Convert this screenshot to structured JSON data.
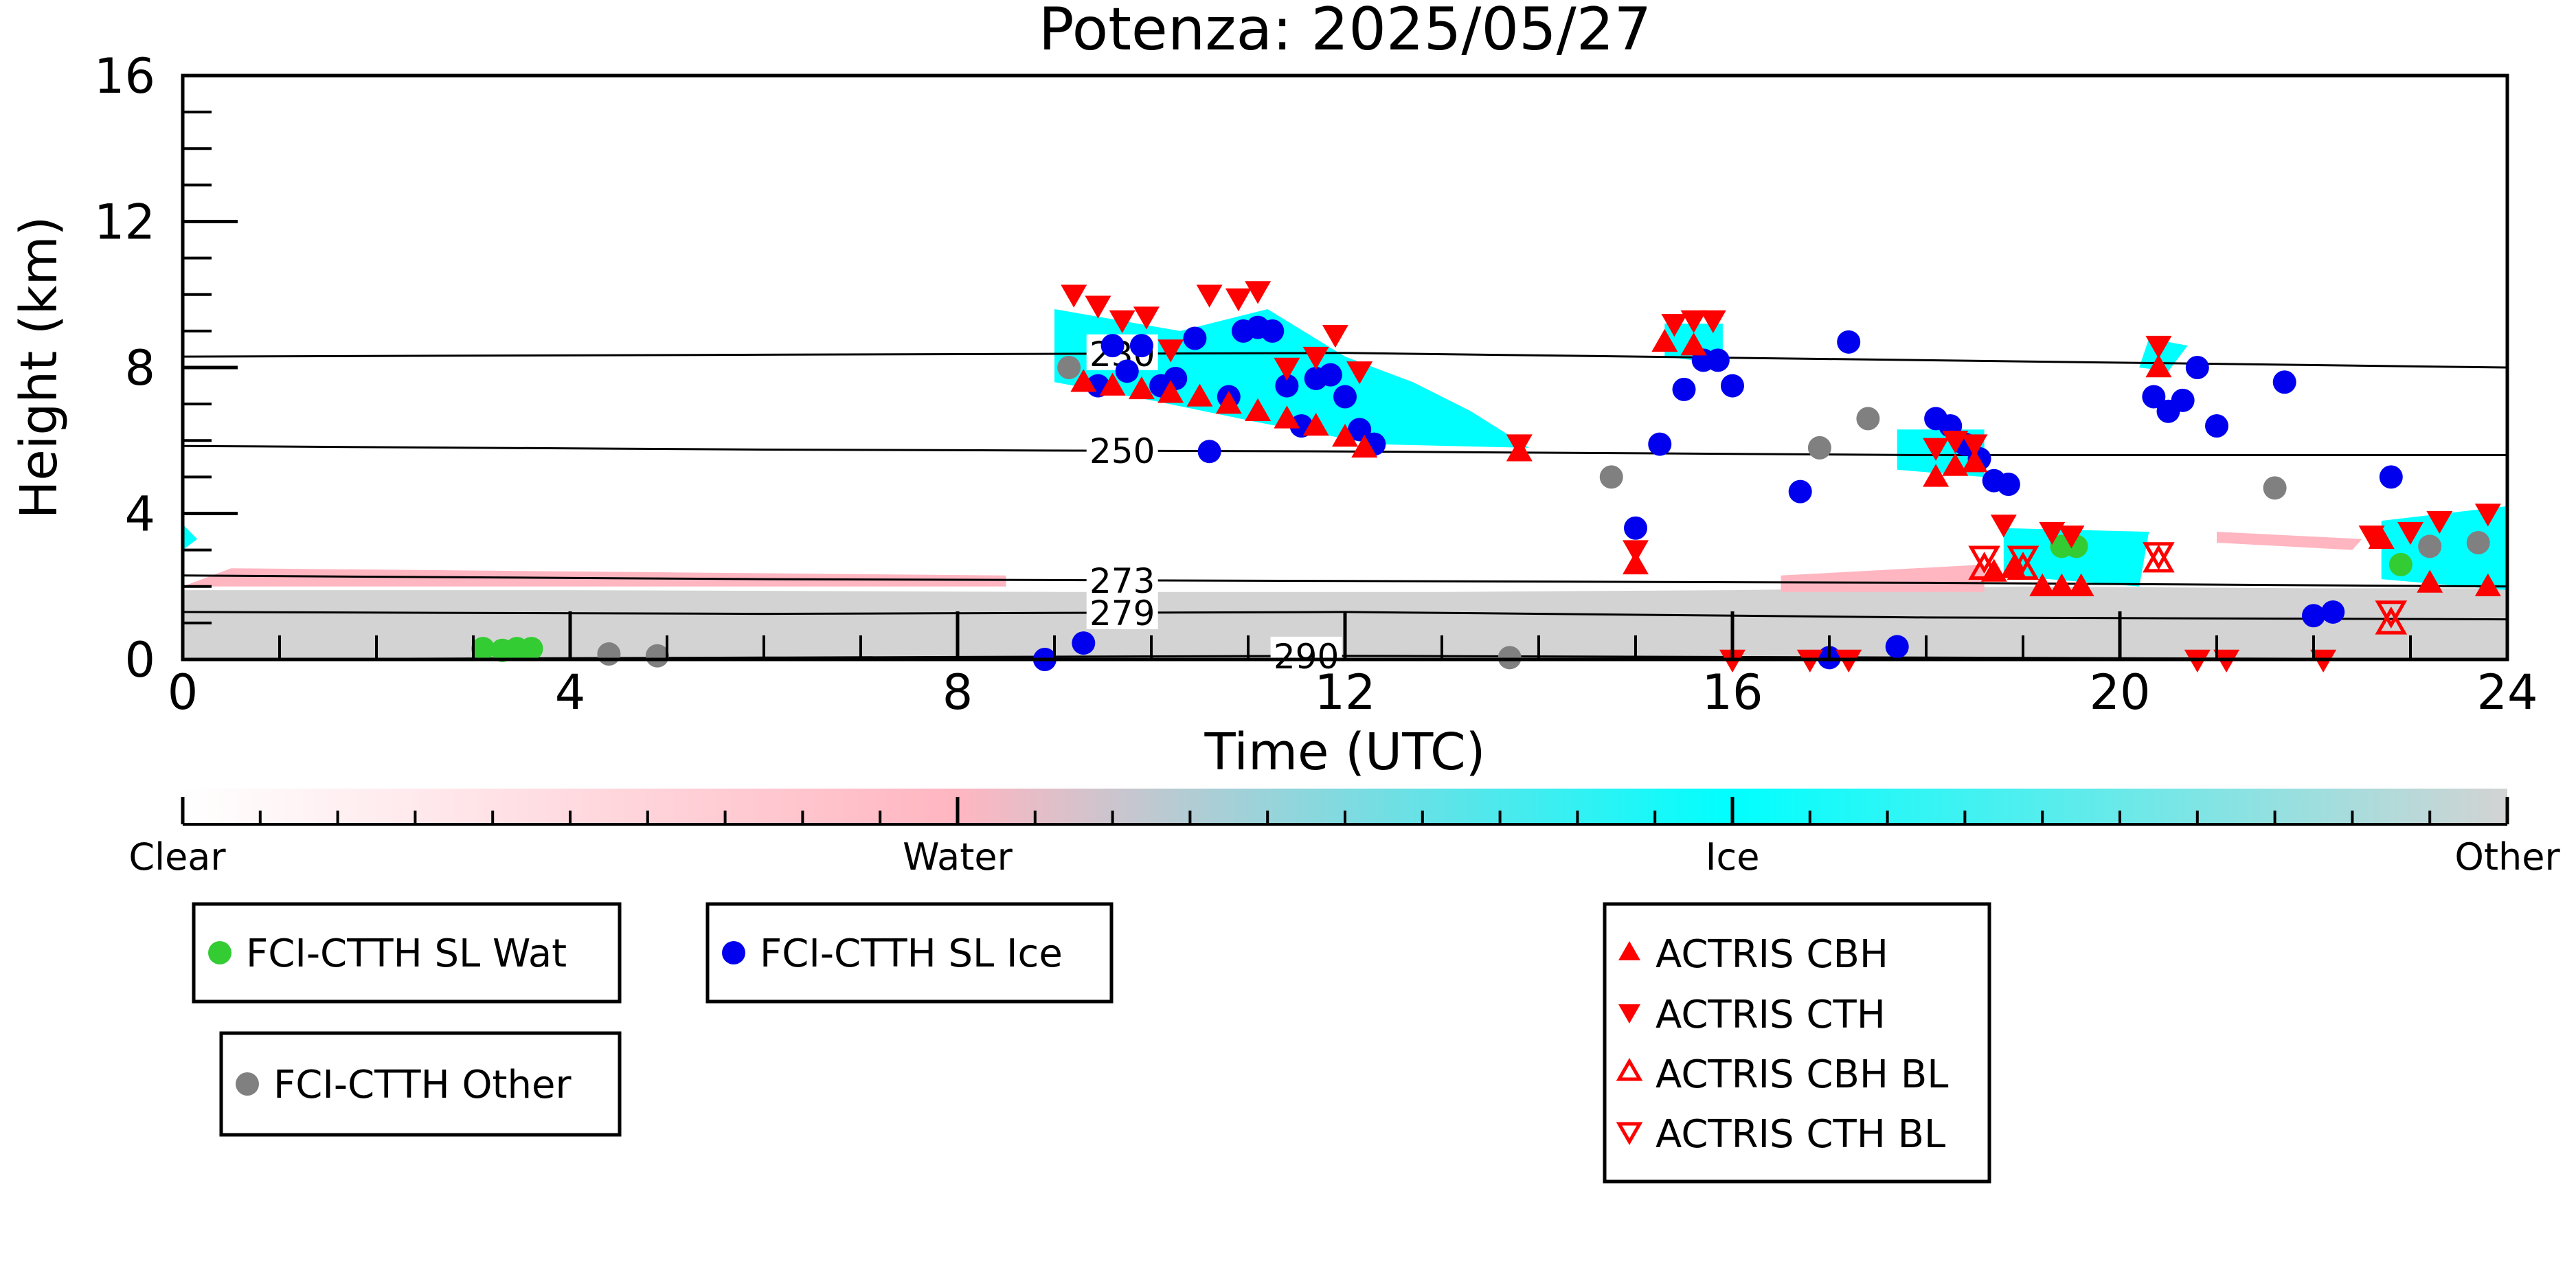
{
  "chart_data": {
    "type": "scatter",
    "title": "Potenza: 2025/05/27",
    "xlabel": "Time (UTC)",
    "ylabel": "Height (km)",
    "xlim": [
      0,
      24
    ],
    "ylim": [
      0,
      16
    ],
    "xticks": [
      "0",
      "4",
      "8",
      "12",
      "16",
      "20",
      "24"
    ],
    "yticks": [
      "0",
      "4",
      "8",
      "12",
      "16"
    ],
    "isotherms": [
      {
        "label": "230",
        "label_x": 9.7,
        "points": [
          [
            0,
            8.3
          ],
          [
            6,
            8.35
          ],
          [
            12,
            8.4
          ],
          [
            18,
            8.2
          ],
          [
            24,
            8.0
          ]
        ]
      },
      {
        "label": "250",
        "label_x": 9.7,
        "points": [
          [
            0,
            5.85
          ],
          [
            6,
            5.75
          ],
          [
            12,
            5.7
          ],
          [
            18,
            5.6
          ],
          [
            24,
            5.6
          ]
        ]
      },
      {
        "label": "273",
        "label_x": 9.7,
        "points": [
          [
            0,
            2.3
          ],
          [
            6,
            2.2
          ],
          [
            12,
            2.15
          ],
          [
            18,
            2.1
          ],
          [
            24,
            2.0
          ]
        ]
      },
      {
        "label": "279",
        "label_x": 9.7,
        "points": [
          [
            0,
            1.3
          ],
          [
            6,
            1.25
          ],
          [
            12,
            1.3
          ],
          [
            18,
            1.15
          ],
          [
            24,
            1.1
          ]
        ]
      },
      {
        "label": "290",
        "label_x": 11.6,
        "points": [
          [
            0,
            0.0
          ],
          [
            6,
            0.05
          ],
          [
            12,
            0.1
          ],
          [
            18,
            0.05
          ],
          [
            24,
            0.0
          ]
        ]
      }
    ],
    "colorbar": {
      "labels": [
        "Clear",
        "Water",
        "Ice",
        "Other"
      ],
      "colors": [
        "#ffffff",
        "#ffb6c1",
        "#00ffff",
        "#d3d3d3"
      ]
    },
    "cloud_regions": [
      {
        "class": "Other",
        "polygon": [
          [
            0,
            0
          ],
          [
            0,
            1.9
          ],
          [
            4,
            1.9
          ],
          [
            9,
            1.85
          ],
          [
            13,
            1.85
          ],
          [
            16,
            1.9
          ],
          [
            19,
            2.0
          ],
          [
            22,
            1.95
          ],
          [
            24,
            1.95
          ],
          [
            24,
            0
          ]
        ]
      },
      {
        "class": "Ice",
        "polygon": [
          [
            9.0,
            9.6
          ],
          [
            10.3,
            9.0
          ],
          [
            11.2,
            9.6
          ],
          [
            12.0,
            8.3
          ],
          [
            12.7,
            7.6
          ],
          [
            13.3,
            6.8
          ],
          [
            13.9,
            5.8
          ],
          [
            12.3,
            5.9
          ],
          [
            11.1,
            6.5
          ],
          [
            10.0,
            7.1
          ],
          [
            9.0,
            7.6
          ]
        ]
      },
      {
        "class": "Ice",
        "polygon": [
          [
            15.3,
            9.2
          ],
          [
            15.9,
            9.2
          ],
          [
            15.9,
            8.1
          ],
          [
            15.3,
            8.3
          ]
        ]
      },
      {
        "class": "Ice",
        "polygon": [
          [
            17.7,
            6.3
          ],
          [
            18.6,
            6.3
          ],
          [
            18.6,
            5.0
          ],
          [
            17.7,
            5.2
          ]
        ]
      },
      {
        "class": "Ice",
        "polygon": [
          [
            18.8,
            3.6
          ],
          [
            20.3,
            3.5
          ],
          [
            20.2,
            2.0
          ],
          [
            18.8,
            2.3
          ]
        ]
      },
      {
        "class": "Ice",
        "polygon": [
          [
            22.7,
            3.8
          ],
          [
            24,
            4.2
          ],
          [
            24,
            1.9
          ],
          [
            22.7,
            2.2
          ]
        ]
      },
      {
        "class": "Ice",
        "polygon": [
          [
            20.3,
            8.8
          ],
          [
            20.7,
            8.6
          ],
          [
            20.5,
            7.9
          ],
          [
            20.2,
            8.0
          ]
        ]
      },
      {
        "class": "Ice",
        "polygon": [
          [
            0.0,
            3.7
          ],
          [
            0.15,
            3.3
          ],
          [
            0.0,
            3.0
          ]
        ]
      },
      {
        "class": "Water",
        "polygon": [
          [
            0,
            2.0
          ],
          [
            0.5,
            2.5
          ],
          [
            8.5,
            2.3
          ],
          [
            8.5,
            2.0
          ]
        ]
      },
      {
        "class": "Water",
        "polygon": [
          [
            16.5,
            2.3
          ],
          [
            18.6,
            2.6
          ],
          [
            18.6,
            1.85
          ],
          [
            16.5,
            1.85
          ]
        ]
      },
      {
        "class": "Water",
        "polygon": [
          [
            21.0,
            3.5
          ],
          [
            22.5,
            3.3
          ],
          [
            22.4,
            3.0
          ],
          [
            21.0,
            3.2
          ]
        ]
      }
    ],
    "series": [
      {
        "name": "FCI-CTTH SL Wat",
        "marker": "circle",
        "color": "#33cc33",
        "points": [
          [
            3.1,
            0.3
          ],
          [
            3.3,
            0.25
          ],
          [
            3.45,
            0.3
          ],
          [
            3.6,
            0.3
          ],
          [
            19.4,
            3.1
          ],
          [
            19.55,
            3.1
          ],
          [
            22.9,
            2.6
          ]
        ]
      },
      {
        "name": "FCI-CTTH SL Ice",
        "marker": "circle",
        "color": "#0000ee",
        "points": [
          [
            9.3,
            0.45
          ],
          [
            9.45,
            7.5
          ],
          [
            9.6,
            8.6
          ],
          [
            9.75,
            7.9
          ],
          [
            9.9,
            8.6
          ],
          [
            10.1,
            7.5
          ],
          [
            10.25,
            7.7
          ],
          [
            10.45,
            8.8
          ],
          [
            10.6,
            5.7
          ],
          [
            10.8,
            7.2
          ],
          [
            10.95,
            9.0
          ],
          [
            11.1,
            9.1
          ],
          [
            11.25,
            9.0
          ],
          [
            11.4,
            7.5
          ],
          [
            11.55,
            6.4
          ],
          [
            11.7,
            7.7
          ],
          [
            11.85,
            7.8
          ],
          [
            12.0,
            7.2
          ],
          [
            12.15,
            6.3
          ],
          [
            12.3,
            5.9
          ],
          [
            15.0,
            3.6
          ],
          [
            15.25,
            5.9
          ],
          [
            15.5,
            7.4
          ],
          [
            15.7,
            8.2
          ],
          [
            15.85,
            8.2
          ],
          [
            16.0,
            7.5
          ],
          [
            16.7,
            4.6
          ],
          [
            17.0,
            0.05
          ],
          [
            17.2,
            8.7
          ],
          [
            17.7,
            0.35
          ],
          [
            18.1,
            6.6
          ],
          [
            18.25,
            6.4
          ],
          [
            18.4,
            5.9
          ],
          [
            18.55,
            5.5
          ],
          [
            18.7,
            4.9
          ],
          [
            18.85,
            4.8
          ],
          [
            20.35,
            7.2
          ],
          [
            20.5,
            6.8
          ],
          [
            20.65,
            7.1
          ],
          [
            20.8,
            8.0
          ],
          [
            21.0,
            6.4
          ],
          [
            21.7,
            7.6
          ],
          [
            22.0,
            1.2
          ],
          [
            22.2,
            1.3
          ],
          [
            22.8,
            5.0
          ],
          [
            8.9,
            0.0
          ]
        ]
      },
      {
        "name": "FCI-CTTH Other",
        "marker": "circle",
        "color": "#808080",
        "points": [
          [
            9.15,
            8.0
          ],
          [
            4.4,
            0.15
          ],
          [
            4.9,
            0.1
          ],
          [
            13.7,
            0.05
          ],
          [
            14.75,
            5.0
          ],
          [
            16.9,
            5.8
          ],
          [
            17.4,
            6.6
          ],
          [
            21.6,
            4.7
          ],
          [
            23.2,
            3.1
          ],
          [
            23.7,
            3.2
          ]
        ]
      },
      {
        "name": "ACTRIS CBH",
        "marker": "triangle-up",
        "color": "#ff0000",
        "points": [
          [
            9.3,
            7.6
          ],
          [
            9.6,
            7.5
          ],
          [
            9.9,
            7.4
          ],
          [
            10.2,
            7.3
          ],
          [
            10.5,
            7.2
          ],
          [
            10.8,
            7.0
          ],
          [
            11.1,
            6.8
          ],
          [
            11.4,
            6.6
          ],
          [
            11.7,
            6.4
          ],
          [
            12.0,
            6.1
          ],
          [
            12.2,
            5.8
          ],
          [
            13.8,
            5.7
          ],
          [
            15.0,
            2.6
          ],
          [
            15.3,
            8.7
          ],
          [
            15.6,
            8.6
          ],
          [
            18.1,
            5.0
          ],
          [
            18.3,
            5.3
          ],
          [
            18.5,
            5.4
          ],
          [
            18.7,
            2.4
          ],
          [
            18.9,
            2.5
          ],
          [
            19.2,
            2.0
          ],
          [
            19.4,
            2.0
          ],
          [
            19.6,
            2.0
          ],
          [
            20.4,
            8.0
          ],
          [
            22.7,
            3.3
          ],
          [
            23.2,
            2.1
          ],
          [
            23.8,
            2.0
          ]
        ]
      },
      {
        "name": "ACTRIS CTH",
        "marker": "triangle-down",
        "color": "#ff0000",
        "points": [
          [
            9.2,
            10.0
          ],
          [
            9.45,
            9.7
          ],
          [
            9.7,
            9.3
          ],
          [
            9.95,
            9.4
          ],
          [
            10.2,
            8.5
          ],
          [
            10.6,
            10.0
          ],
          [
            10.9,
            9.9
          ],
          [
            11.1,
            10.1
          ],
          [
            11.4,
            8.0
          ],
          [
            11.7,
            8.3
          ],
          [
            11.9,
            8.9
          ],
          [
            12.15,
            7.9
          ],
          [
            13.8,
            5.9
          ],
          [
            15.0,
            3.0
          ],
          [
            15.4,
            9.2
          ],
          [
            15.6,
            9.3
          ],
          [
            15.8,
            9.3
          ],
          [
            18.1,
            5.8
          ],
          [
            18.3,
            6.0
          ],
          [
            18.5,
            5.9
          ],
          [
            18.8,
            3.7
          ],
          [
            19.3,
            3.5
          ],
          [
            19.5,
            3.4
          ],
          [
            20.4,
            8.6
          ],
          [
            22.6,
            3.4
          ],
          [
            23.0,
            3.5
          ],
          [
            23.3,
            3.8
          ],
          [
            23.8,
            4.0
          ],
          [
            16.0,
            0.0
          ],
          [
            16.8,
            0.0
          ],
          [
            17.2,
            0.0
          ],
          [
            20.8,
            0.0
          ],
          [
            21.1,
            0.0
          ],
          [
            22.1,
            0.0
          ]
        ]
      },
      {
        "name": "ACTRIS CBH BL",
        "marker": "triangle-up-open",
        "color": "#ff0000",
        "points": [
          [
            18.6,
            2.5
          ],
          [
            19.0,
            2.5
          ],
          [
            20.4,
            2.7
          ],
          [
            22.8,
            1.0
          ]
        ]
      },
      {
        "name": "ACTRIS CTH BL",
        "marker": "triangle-down-open",
        "color": "#ff0000",
        "points": [
          [
            18.6,
            2.8
          ],
          [
            19.0,
            2.8
          ],
          [
            20.4,
            2.9
          ],
          [
            22.8,
            1.3
          ]
        ]
      }
    ],
    "legend_placement": "bottom",
    "grid": false
  }
}
